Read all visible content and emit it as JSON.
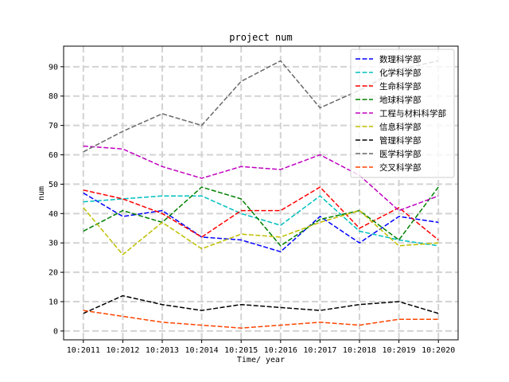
{
  "chart_data": {
    "type": "line",
    "title": "project num",
    "xlabel": "Time/ year",
    "ylabel": "num",
    "categories": [
      "10:2011",
      "10:2012",
      "10:2013",
      "10:2014",
      "10:2015",
      "10:2016",
      "10:2017",
      "10:2018",
      "10:2019",
      "10:2020"
    ],
    "ylim": [
      -3,
      97
    ],
    "yticks": [
      0,
      10,
      20,
      30,
      40,
      50,
      60,
      70,
      80,
      90
    ],
    "grid": true,
    "legend_position": "top-right",
    "series": [
      {
        "name": "数理科学部",
        "color": "#0000ff",
        "values": [
          47,
          39,
          41,
          32,
          31,
          27,
          39,
          30,
          39,
          37
        ]
      },
      {
        "name": "化学科学部",
        "color": "#00bfbf",
        "values": [
          44,
          45,
          46,
          46,
          40,
          36,
          46,
          34,
          31,
          29
        ]
      },
      {
        "name": "生命科学部",
        "color": "#ff0000",
        "values": [
          48,
          45,
          40,
          32,
          41,
          41,
          49,
          35,
          42,
          31
        ]
      },
      {
        "name": "地球科学部",
        "color": "#008000",
        "values": [
          34,
          41,
          37,
          49,
          45,
          29,
          38,
          41,
          31,
          49
        ]
      },
      {
        "name": "工程与材料科学部",
        "color": "#bf00bf",
        "values": [
          63,
          62,
          56,
          52,
          56,
          55,
          60,
          53,
          41,
          46
        ]
      },
      {
        "name": "信息科学部",
        "color": "#bfbf00",
        "values": [
          42,
          26,
          37,
          28,
          33,
          32,
          37,
          41,
          29,
          30
        ]
      },
      {
        "name": "管理科学部",
        "color": "#000000",
        "values": [
          6,
          12,
          9,
          7,
          9,
          8,
          7,
          9,
          10,
          6
        ]
      },
      {
        "name": "医学科学部",
        "color": "#696969",
        "values": [
          61,
          68,
          74,
          70,
          85,
          92,
          76,
          82,
          89,
          92
        ]
      },
      {
        "name": "交叉科学部",
        "color": "#ff4500",
        "values": [
          7,
          5,
          3,
          2,
          1,
          2,
          3,
          2,
          4,
          4
        ]
      }
    ]
  }
}
